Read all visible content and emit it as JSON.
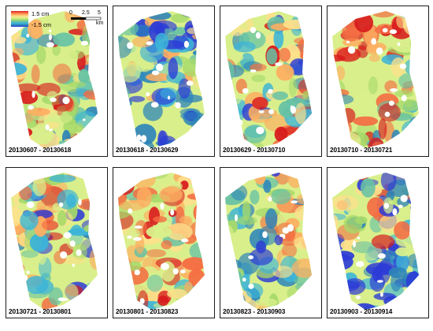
{
  "legend": {
    "max_label": "1.5 cm",
    "min_label": "-1.5 cm",
    "colors": [
      "#d7191c",
      "#f46d43",
      "#fdae61",
      "#fee08b",
      "#d9ef8b",
      "#a6d96a",
      "#66c2a5",
      "#3cb4d8",
      "#2b83ba",
      "#2c3bd6"
    ]
  },
  "scalebar": {
    "ticks": [
      "0",
      "2.5",
      "5"
    ],
    "unit": "km"
  },
  "panels": [
    {
      "label": "20130607 - 20130618",
      "dominant": "mixed-warm"
    },
    {
      "label": "20130618 - 20130629",
      "dominant": "cool"
    },
    {
      "label": "20130629 - 20130710",
      "dominant": "mixed"
    },
    {
      "label": "20130710 - 20130721",
      "dominant": "warm-north"
    },
    {
      "label": "20130721 - 20130801",
      "dominant": "mixed"
    },
    {
      "label": "20130801 - 20130823",
      "dominant": "warm"
    },
    {
      "label": "20130823 - 20130903",
      "dominant": "mixed-cool"
    },
    {
      "label": "20130903 - 20130914",
      "dominant": "cool-south"
    }
  ]
}
